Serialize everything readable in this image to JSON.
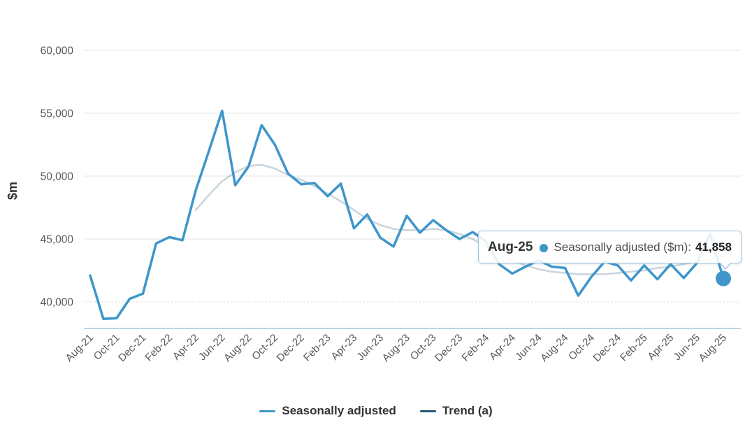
{
  "tooltip": {
    "date": "Aug-25",
    "series_label": "Seasonally adjusted ($m):",
    "value": "41,858"
  },
  "chart_data": {
    "type": "line",
    "title": "",
    "xlabel": "",
    "ylabel": "$m",
    "ylim": [
      38000,
      61000
    ],
    "y_ticks": [
      60000,
      55000,
      50000,
      45000,
      40000
    ],
    "y_tick_labels": [
      "60,000",
      "55,000",
      "50,000",
      "45,000",
      "40,000"
    ],
    "x_tick_every": 2,
    "grid": true,
    "legend_position": "bottom-center",
    "categories": [
      "Aug-21",
      "Sep-21",
      "Oct-21",
      "Nov-21",
      "Dec-21",
      "Jan-22",
      "Feb-22",
      "Mar-22",
      "Apr-22",
      "May-22",
      "Jun-22",
      "Jul-22",
      "Aug-22",
      "Sep-22",
      "Oct-22",
      "Nov-22",
      "Dec-22",
      "Jan-23",
      "Feb-23",
      "Mar-23",
      "Apr-23",
      "May-23",
      "Jun-23",
      "Jul-23",
      "Aug-23",
      "Sep-23",
      "Oct-23",
      "Nov-23",
      "Dec-23",
      "Jan-24",
      "Feb-24",
      "Mar-24",
      "Apr-24",
      "May-24",
      "Jun-24",
      "Jul-24",
      "Aug-24",
      "Sep-24",
      "Oct-24",
      "Nov-24",
      "Dec-24",
      "Jan-25",
      "Feb-25",
      "Mar-25",
      "Apr-25",
      "May-25",
      "Jun-25",
      "Jul-25",
      "Aug-25"
    ],
    "series": [
      {
        "name": "Seasonally adjusted",
        "color": "#3e96cb",
        "state": "active",
        "values": [
          42100,
          38650,
          38700,
          40250,
          40650,
          44650,
          45150,
          44900,
          48850,
          52000,
          55200,
          49280,
          50750,
          54050,
          52500,
          50200,
          49350,
          49450,
          48400,
          49400,
          45850,
          46950,
          45100,
          44400,
          46850,
          45500,
          46500,
          45700,
          45000,
          45550,
          44800,
          43000,
          42250,
          42800,
          43300,
          42800,
          42700,
          40500,
          42000,
          43200,
          42900,
          41700,
          42900,
          41800,
          43000,
          41900,
          43100,
          45400,
          41858
        ]
      },
      {
        "name": "Trend (a)",
        "color": "#245872",
        "state": "dimmed",
        "values": [
          null,
          null,
          null,
          null,
          null,
          null,
          null,
          null,
          47300,
          48500,
          49600,
          50300,
          50800,
          50900,
          50600,
          50100,
          49700,
          49200,
          48600,
          48000,
          47300,
          46600,
          46100,
          45800,
          45700,
          45700,
          45800,
          45700,
          45400,
          45000,
          44400,
          43800,
          43300,
          42900,
          42600,
          42400,
          42300,
          42200,
          42200,
          42200,
          42300,
          42400,
          42500,
          42700,
          42800,
          43000,
          43200,
          43400,
          43600
        ]
      }
    ],
    "highlight_point": {
      "category": "Aug-25",
      "series": "Seasonally adjusted",
      "value": 41858
    }
  }
}
